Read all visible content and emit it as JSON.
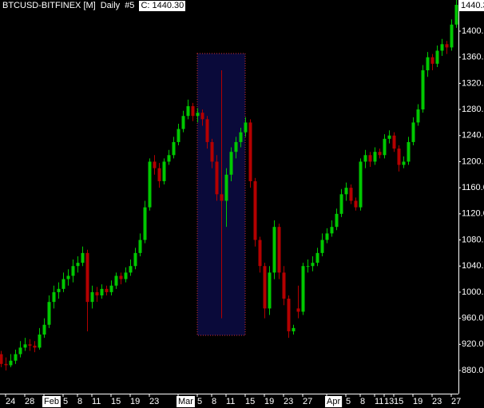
{
  "chart_data": {
    "type": "candlestick",
    "title": "BTCUSD-BITFINEX [M]",
    "interval": "Daily",
    "series_label": "#5",
    "close_label": "C: 1440.30",
    "last_price": 1440.3,
    "up_color": "#00c800",
    "down_color": "#b40000",
    "ylim": [
      844.5,
      1447.7
    ],
    "yticks": [
      {
        "value": 880,
        "label": "880.00"
      },
      {
        "value": 920,
        "label": "920.00"
      },
      {
        "value": 960,
        "label": "960.00"
      },
      {
        "value": 1000,
        "label": "1000.00"
      },
      {
        "value": 1040,
        "label": "1040.00"
      },
      {
        "value": 1080,
        "label": "1080.00"
      },
      {
        "value": 1120,
        "label": "1120.00"
      },
      {
        "value": 1160,
        "label": "1160.00"
      },
      {
        "value": 1200,
        "label": "1200.00"
      },
      {
        "value": 1240,
        "label": "1240.00"
      },
      {
        "value": 1280,
        "label": "1280.00"
      },
      {
        "value": 1320,
        "label": "1320.00"
      },
      {
        "value": 1360,
        "label": "1360.00"
      },
      {
        "value": 1400,
        "label": "1400.00"
      }
    ],
    "xticks": [
      {
        "value": 2,
        "label": "24"
      },
      {
        "value": 6,
        "label": "28"
      },
      {
        "value": 10,
        "label": "Feb"
      },
      {
        "value": 14,
        "label": "5"
      },
      {
        "value": 17,
        "label": "8"
      },
      {
        "value": 20,
        "label": "11"
      },
      {
        "value": 24,
        "label": "15"
      },
      {
        "value": 28,
        "label": "19"
      },
      {
        "value": 32,
        "label": "23"
      },
      {
        "value": 38,
        "label": "Mar"
      },
      {
        "value": 42,
        "label": "5"
      },
      {
        "value": 45,
        "label": "8"
      },
      {
        "value": 48,
        "label": "11"
      },
      {
        "value": 52,
        "label": "15"
      },
      {
        "value": 56,
        "label": "19"
      },
      {
        "value": 60,
        "label": "23"
      },
      {
        "value": 64,
        "label": "27"
      },
      {
        "value": 69,
        "label": "Apr"
      },
      {
        "value": 73,
        "label": "5"
      },
      {
        "value": 76,
        "label": "8"
      },
      {
        "value": 79,
        "label": "11"
      },
      {
        "value": 81,
        "label": "13"
      },
      {
        "value": 83,
        "label": "15"
      },
      {
        "value": 87,
        "label": "19"
      },
      {
        "value": 91,
        "label": "23"
      },
      {
        "value": 95,
        "label": "27"
      }
    ],
    "ohlc": [
      [
        910,
        920,
        895,
        905
      ],
      [
        905,
        910,
        885,
        890
      ],
      [
        890,
        900,
        880,
        888
      ],
      [
        888,
        905,
        885,
        895
      ],
      [
        895,
        912,
        890,
        905
      ],
      [
        905,
        925,
        900,
        915
      ],
      [
        915,
        930,
        910,
        920
      ],
      [
        920,
        928,
        910,
        918
      ],
      [
        918,
        925,
        908,
        915
      ],
      [
        915,
        945,
        912,
        935
      ],
      [
        935,
        960,
        930,
        950
      ],
      [
        950,
        995,
        945,
        985
      ],
      [
        985,
        1010,
        975,
        1000
      ],
      [
        1000,
        1015,
        990,
        1005
      ],
      [
        1005,
        1030,
        1000,
        1020
      ],
      [
        1020,
        1035,
        1010,
        1025
      ],
      [
        1025,
        1050,
        1015,
        1040
      ],
      [
        1040,
        1055,
        1030,
        1045
      ],
      [
        1045,
        1070,
        1040,
        1060
      ],
      [
        1060,
        1065,
        940,
        985
      ],
      [
        985,
        1010,
        975,
        1000
      ],
      [
        1000,
        1008,
        985,
        995
      ],
      [
        995,
        1012,
        990,
        1005
      ],
      [
        1005,
        1010,
        995,
        1000
      ],
      [
        1000,
        1018,
        995,
        1010
      ],
      [
        1010,
        1030,
        1005,
        1025
      ],
      [
        1025,
        1030,
        1012,
        1020
      ],
      [
        1020,
        1038,
        1015,
        1030
      ],
      [
        1030,
        1050,
        1025,
        1040
      ],
      [
        1040,
        1068,
        1035,
        1060
      ],
      [
        1060,
        1090,
        1055,
        1080
      ],
      [
        1080,
        1140,
        1075,
        1130
      ],
      [
        1130,
        1205,
        1125,
        1200
      ],
      [
        1200,
        1210,
        1180,
        1190
      ],
      [
        1190,
        1198,
        1160,
        1170
      ],
      [
        1170,
        1205,
        1165,
        1200
      ],
      [
        1200,
        1218,
        1195,
        1210
      ],
      [
        1210,
        1238,
        1205,
        1230
      ],
      [
        1230,
        1258,
        1225,
        1250
      ],
      [
        1250,
        1278,
        1245,
        1270
      ],
      [
        1270,
        1295,
        1265,
        1285
      ],
      [
        1285,
        1290,
        1262,
        1270
      ],
      [
        1270,
        1282,
        1260,
        1275
      ],
      [
        1275,
        1280,
        1255,
        1265
      ],
      [
        1265,
        1270,
        1220,
        1230
      ],
      [
        1230,
        1235,
        1190,
        1200
      ],
      [
        1200,
        1210,
        1140,
        1150
      ],
      [
        1150,
        1340,
        960,
        1140
      ],
      [
        1140,
        1190,
        1100,
        1180
      ],
      [
        1180,
        1222,
        1170,
        1215
      ],
      [
        1215,
        1238,
        1205,
        1230
      ],
      [
        1230,
        1252,
        1222,
        1245
      ],
      [
        1245,
        1268,
        1238,
        1260
      ],
      [
        1260,
        1265,
        1160,
        1170
      ],
      [
        1170,
        1175,
        1070,
        1080
      ],
      [
        1080,
        1085,
        1030,
        1040
      ],
      [
        1040,
        1045,
        960,
        975
      ],
      [
        975,
        1040,
        965,
        1030
      ],
      [
        1030,
        1110,
        1020,
        1100
      ],
      [
        1100,
        1105,
        1020,
        1030
      ],
      [
        1030,
        1040,
        980,
        990
      ],
      [
        990,
        995,
        930,
        940
      ],
      [
        940,
        950,
        935,
        945
      ],
      [
        975,
        1010,
        960,
        970
      ],
      [
        970,
        1045,
        965,
        1040
      ],
      [
        1040,
        1050,
        1030,
        1040
      ],
      [
        1040,
        1055,
        1032,
        1045
      ],
      [
        1045,
        1068,
        1040,
        1060
      ],
      [
        1060,
        1090,
        1055,
        1080
      ],
      [
        1080,
        1098,
        1075,
        1090
      ],
      [
        1090,
        1110,
        1085,
        1100
      ],
      [
        1100,
        1128,
        1095,
        1120
      ],
      [
        1120,
        1158,
        1115,
        1150
      ],
      [
        1150,
        1168,
        1140,
        1160
      ],
      [
        1160,
        1165,
        1135,
        1140
      ],
      [
        1140,
        1145,
        1125,
        1130
      ],
      [
        1130,
        1205,
        1125,
        1200
      ],
      [
        1200,
        1218,
        1190,
        1210
      ],
      [
        1210,
        1215,
        1192,
        1200
      ],
      [
        1200,
        1222,
        1195,
        1215
      ],
      [
        1215,
        1220,
        1205,
        1210
      ],
      [
        1210,
        1242,
        1205,
        1235
      ],
      [
        1235,
        1248,
        1228,
        1240
      ],
      [
        1240,
        1245,
        1215,
        1220
      ],
      [
        1220,
        1225,
        1185,
        1195
      ],
      [
        1195,
        1208,
        1190,
        1200
      ],
      [
        1200,
        1238,
        1195,
        1230
      ],
      [
        1230,
        1268,
        1225,
        1260
      ],
      [
        1260,
        1288,
        1255,
        1280
      ],
      [
        1280,
        1348,
        1275,
        1340
      ],
      [
        1340,
        1368,
        1330,
        1360
      ],
      [
        1360,
        1365,
        1340,
        1350
      ],
      [
        1350,
        1378,
        1345,
        1370
      ],
      [
        1370,
        1388,
        1362,
        1380
      ],
      [
        1380,
        1385,
        1365,
        1375
      ],
      [
        1375,
        1418,
        1370,
        1410
      ],
      [
        1410,
        1448,
        1405,
        1440.3
      ]
    ]
  }
}
